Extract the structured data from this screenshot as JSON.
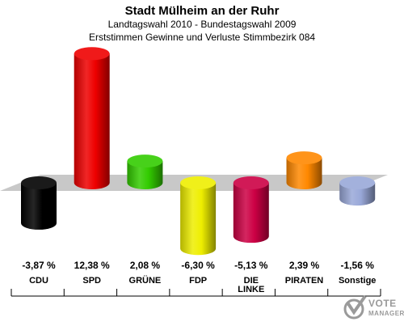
{
  "header": {
    "title": "Stadt Mülheim an der Ruhr",
    "subtitle": "Landtagswahl 2010 - Bundestagswahl 2009",
    "subtitle2": "Erststimmen Gewinne und Verluste Stimmbezirk 084"
  },
  "chart_data": {
    "type": "bar",
    "categories": [
      "CDU",
      "SPD",
      "GRÜNE",
      "FDP",
      "DIE LINKE",
      "PIRATEN",
      "Sonstige"
    ],
    "values": [
      -3.87,
      12.38,
      2.08,
      -6.3,
      -5.13,
      2.39,
      -1.56
    ],
    "value_labels": [
      "-3,87 %",
      "12,38 %",
      "2,08 %",
      "-6,30 %",
      "-5,13 %",
      "2,39 %",
      "-1,56 %"
    ],
    "colors": [
      "#000000",
      "#ee0000",
      "#33cc00",
      "#eeee00",
      "#cc0044",
      "#ff8800",
      "#99a8d8"
    ],
    "title": "Stadt Mülheim an der Ruhr",
    "subtitle": "Landtagswahl 2010 - Bundestagswahl 2009",
    "xlabel": "",
    "ylabel": "",
    "ylim": [
      -7.5,
      13.5
    ],
    "grid": false,
    "legend": "none"
  },
  "logo": {
    "line1": "VOTE",
    "line2": "MANAGER"
  }
}
